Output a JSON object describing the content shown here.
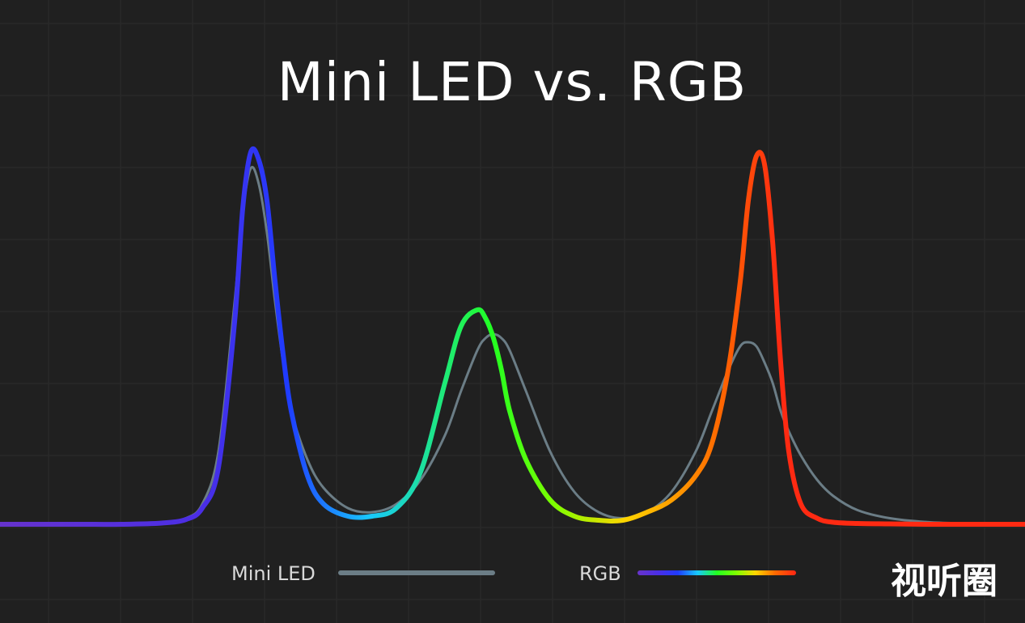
{
  "chart_data": {
    "type": "line",
    "title": "Mini LED vs. RGB",
    "xlabel": "",
    "ylabel": "",
    "grid": true,
    "legend_position": "bottom",
    "x": [
      0,
      50,
      100,
      150,
      200,
      230,
      250,
      270,
      290,
      300,
      310,
      320,
      330,
      340,
      350,
      360,
      380,
      400,
      430,
      460,
      490,
      520,
      550,
      570,
      590,
      600,
      610,
      620,
      630,
      650,
      680,
      710,
      740,
      770,
      800,
      830,
      860,
      880,
      900,
      915,
      925,
      935,
      945,
      955,
      965,
      975,
      990,
      1010,
      1030,
      1060,
      1100,
      1150,
      1200,
      1267
    ],
    "series": [
      {
        "name": "Mini LED",
        "color": "#6b7d86",
        "values": [
          0,
          0,
          0,
          0,
          0.2,
          1.5,
          5,
          18,
          55,
          77,
          88,
          84,
          72,
          55,
          40,
          28,
          16,
          9,
          4,
          3,
          5,
          11,
          22,
          33,
          43,
          46,
          47,
          46,
          43,
          33,
          18,
          8,
          3,
          1.5,
          3,
          8,
          18,
          28,
          38,
          44,
          45,
          44,
          40,
          35,
          28,
          23,
          17,
          11,
          7,
          3.5,
          1.5,
          0.5,
          0.2,
          0
        ]
      },
      {
        "name": "RGB",
        "color_stops": [
          "#6633cc",
          "#4a2ee6",
          "#1f3bff",
          "#18c8ff",
          "#22ff22",
          "#7dff00",
          "#ffd500",
          "#ff6a00",
          "#ff2a12"
        ],
        "values": [
          0,
          0,
          0,
          0,
          0.3,
          1.2,
          4,
          14,
          50,
          78,
          92,
          90,
          80,
          60,
          42,
          28,
          12,
          5,
          2,
          2,
          4,
          13,
          35,
          49,
          53,
          51,
          46,
          38,
          28,
          16,
          6,
          2,
          1,
          1,
          3,
          6,
          12,
          20,
          38,
          60,
          80,
          91,
          89,
          70,
          40,
          18,
          5,
          1.5,
          0.5,
          0.2,
          0.1,
          0,
          0,
          0
        ]
      }
    ],
    "legend": [
      {
        "label": "Mini LED",
        "series": "Mini LED"
      },
      {
        "label": "RGB",
        "series": "RGB"
      }
    ]
  },
  "watermark": "视听圈",
  "colors": {
    "background": "#202020",
    "grid": "#2b2b2b",
    "text": "#ffffff"
  }
}
